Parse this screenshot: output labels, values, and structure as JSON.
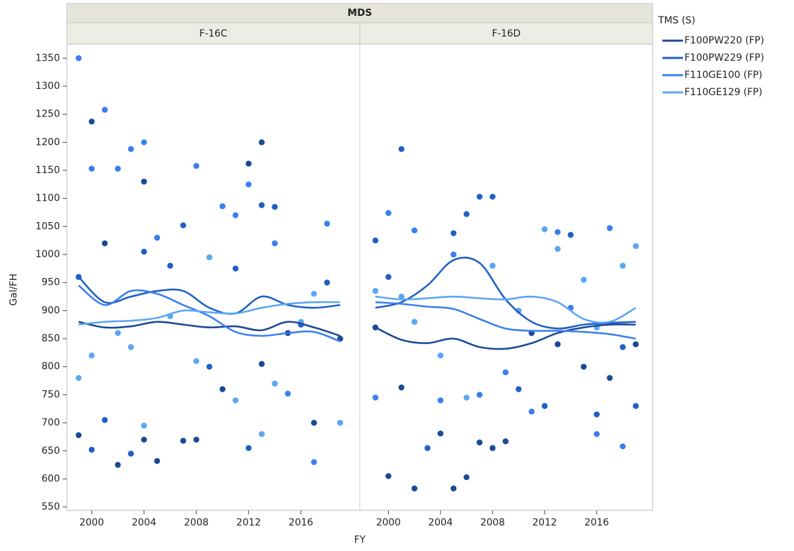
{
  "chart_data": {
    "type": "scatter",
    "title": "MDS",
    "x_label": "FY",
    "y_label": "Gal/FH",
    "legend_title": "TMS (S)",
    "ylim": [
      544,
      1375
    ],
    "yticks": [
      550,
      600,
      650,
      700,
      750,
      800,
      850,
      900,
      950,
      1000,
      1050,
      1100,
      1150,
      1200,
      1250,
      1300,
      1350
    ],
    "series": [
      {
        "name": "F100PW220 (FP)",
        "color": "#1a4a96"
      },
      {
        "name": "F100PW229 (FP)",
        "color": "#1f60c4"
      },
      {
        "name": "F110GE100 (FP)",
        "color": "#3a7fee"
      },
      {
        "name": "F110GE129 (FP)",
        "color": "#5ba6f2"
      }
    ],
    "panels": [
      {
        "title": "F-16C",
        "xlim": [
          1998.1,
          2020.5
        ],
        "xticks": [
          2000,
          2004,
          2008,
          2012,
          2016
        ],
        "smooth_x": [
          1999,
          2001,
          2003,
          2005,
          2007,
          2009,
          2011,
          2013,
          2015,
          2017,
          2019
        ],
        "series": [
          {
            "x": [
              1999,
              2000,
              2001,
              2002,
              2004,
              2004,
              2005,
              2007,
              2008,
              2010,
              2012,
              2013,
              2013,
              2015,
              2017,
              2019
            ],
            "values": [
              678,
              1237,
              1020,
              625,
              1130,
              670,
              632,
              668,
              670,
              760,
              1162,
              1200,
              805,
              860,
              700,
              850
            ],
            "smooth": [
              880,
              870,
              872,
              880,
              875,
              870,
              872,
              865,
              880,
              870,
              855
            ]
          },
          {
            "x": [
              1999,
              2000,
              2001,
              2003,
              2004,
              2006,
              2007,
              2009,
              2011,
              2012,
              2013,
              2014,
              2016,
              2018
            ],
            "values": [
              960,
              652,
              705,
              645,
              1005,
              980,
              1052,
              800,
              975,
              655,
              1088,
              1085,
              875,
              950
            ],
            "smooth": [
              960,
              915,
              925,
              935,
              935,
              905,
              895,
              925,
              910,
              905,
              910
            ]
          },
          {
            "x": [
              1999,
              2000,
              2001,
              2002,
              2003,
              2004,
              2005,
              2008,
              2010,
              2011,
              2012,
              2014,
              2015,
              2017,
              2018
            ],
            "values": [
              1350,
              1153,
              1258,
              1153,
              1188,
              1200,
              1030,
              1158,
              1086,
              1070,
              1125,
              1020,
              752,
              630,
              1055
            ],
            "smooth": [
              945,
              910,
              935,
              930,
              910,
              890,
              862,
              855,
              860,
              862,
              845
            ]
          },
          {
            "x": [
              1999,
              2000,
              2002,
              2003,
              2004,
              2006,
              2008,
              2009,
              2011,
              2013,
              2014,
              2016,
              2017,
              2019
            ],
            "values": [
              780,
              820,
              860,
              835,
              695,
              890,
              810,
              995,
              740,
              680,
              770,
              880,
              930,
              700
            ],
            "smooth": [
              875,
              880,
              882,
              887,
              900,
              897,
              895,
              905,
              912,
              915,
              915
            ]
          }
        ]
      },
      {
        "title": "F-16D",
        "xlim": [
          1997.8,
          2020.3
        ],
        "xticks": [
          2000,
          2004,
          2008,
          2012,
          2016
        ],
        "smooth_x": [
          1999,
          2001,
          2003,
          2005,
          2007,
          2009,
          2011,
          2013,
          2015,
          2017,
          2019
        ],
        "series": [
          {
            "x": [
              1999,
              2000,
              2001,
              2002,
              2004,
              2005,
              2006,
              2007,
              2008,
              2009,
              2011,
              2013,
              2015,
              2017,
              2019
            ],
            "values": [
              870,
              605,
              763,
              583,
              681,
              583,
              603,
              665,
              655,
              667,
              860,
              840,
              800,
              780,
              840
            ],
            "smooth": [
              870,
              848,
              842,
              850,
              835,
              832,
              842,
              860,
              870,
              875,
              875
            ]
          },
          {
            "x": [
              1999,
              2000,
              2001,
              2003,
              2005,
              2006,
              2007,
              2008,
              2010,
              2012,
              2014,
              2016,
              2018,
              2019
            ],
            "values": [
              1025,
              960,
              1188,
              655,
              1038,
              1072,
              1103,
              1103,
              760,
              730,
              1035,
              715,
              835,
              730
            ],
            "smooth": [
              905,
              915,
              945,
              990,
              985,
              920,
              880,
              868,
              875,
              878,
              880
            ]
          },
          {
            "x": [
              1999,
              2000,
              2002,
              2004,
              2005,
              2007,
              2009,
              2011,
              2013,
              2014,
              2016,
              2017,
              2018
            ],
            "values": [
              745,
              1074,
              1043,
              740,
              1000,
              750,
              790,
              720,
              1040,
              905,
              680,
              1047,
              658
            ],
            "smooth": [
              915,
              912,
              907,
              903,
              885,
              868,
              864,
              864,
              862,
              858,
              850
            ]
          },
          {
            "x": [
              1999,
              2001,
              2002,
              2004,
              2006,
              2008,
              2010,
              2012,
              2013,
              2015,
              2016,
              2018,
              2019
            ],
            "values": [
              935,
              925,
              880,
              820,
              745,
              980,
              900,
              1045,
              1010,
              955,
              870,
              980,
              1015
            ],
            "smooth": [
              925,
              920,
              922,
              925,
              922,
              920,
              925,
              915,
              885,
              880,
              905
            ]
          }
        ]
      }
    ]
  }
}
